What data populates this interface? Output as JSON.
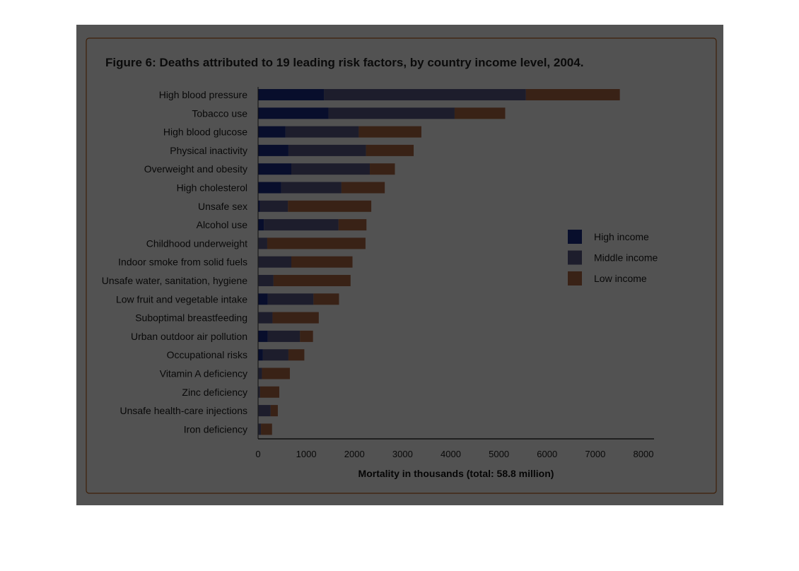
{
  "chart_data": {
    "type": "bar",
    "orientation": "horizontal",
    "stacked": true,
    "title": "Figure 6: Deaths attributed to 19 leading risk factors, by country income level, 2004.",
    "xlabel": "Mortality in thousands (total: 58.8 million)",
    "ylabel": "",
    "xlim": [
      0,
      8000
    ],
    "xticks": [
      "0",
      "1000",
      "2000",
      "3000",
      "4000",
      "5000",
      "6000",
      "7000",
      "8000"
    ],
    "grid": false,
    "legend_position": "right",
    "categories": [
      "High blood pressure",
      "Tobacco use",
      "High blood glucose",
      "Physical inactivity",
      "Overweight and obesity",
      "High cholesterol",
      "Unsafe sex",
      "Alcohol use",
      "Childhood underweight",
      "Indoor smoke from solid fuels",
      "Unsafe water, sanitation, hygiene",
      "Low fruit and vegetable intake",
      "Suboptimal breastfeeding",
      "Urban outdoor air pollution",
      "Occupational risks",
      "Vitamin A deficiency",
      "Zinc deficiency",
      "Unsafe health-care injections",
      "Iron deficiency"
    ],
    "series": [
      {
        "name": "High income",
        "color": "#1a2e8a",
        "values": [
          1370,
          1460,
          570,
          630,
          690,
          480,
          40,
          120,
          10,
          10,
          10,
          200,
          10,
          200,
          100,
          10,
          10,
          10,
          10
        ]
      },
      {
        "name": "Middle income",
        "color": "#5c5a88",
        "values": [
          4190,
          2620,
          1520,
          1610,
          1630,
          1250,
          580,
          1550,
          180,
          680,
          310,
          950,
          290,
          670,
          530,
          70,
          30,
          250,
          50
        ]
      },
      {
        "name": "Low income",
        "color": "#b06a45",
        "values": [
          1950,
          1050,
          1300,
          990,
          520,
          900,
          1730,
          580,
          2040,
          1270,
          1600,
          530,
          960,
          270,
          330,
          580,
          400,
          150,
          230
        ]
      }
    ]
  }
}
